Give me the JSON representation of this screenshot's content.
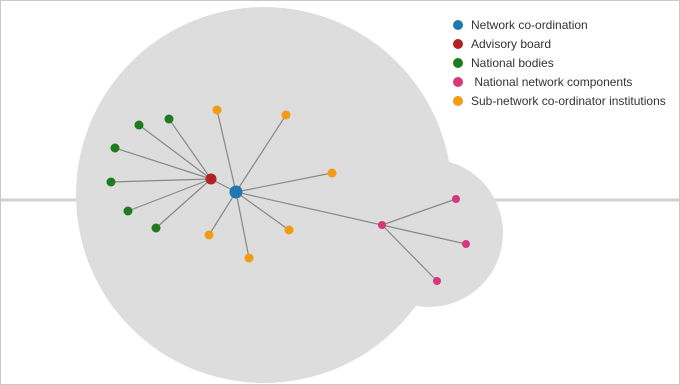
{
  "legend": [
    {
      "label": "Network co-ordination",
      "color": "#1f77b4"
    },
    {
      "label": "Advisory board",
      "color": "#b22222"
    },
    {
      "label": "National bodies",
      "color": "#1e7b1e"
    },
    {
      "label": " National network components",
      "color": "#d6387d"
    },
    {
      "label": "Sub-network co-ordinator institutions",
      "color": "#f39c12"
    }
  ],
  "colors": {
    "blob": "#dddddd",
    "edge": "#888888",
    "frame_line": "#d2d2d2"
  }
}
